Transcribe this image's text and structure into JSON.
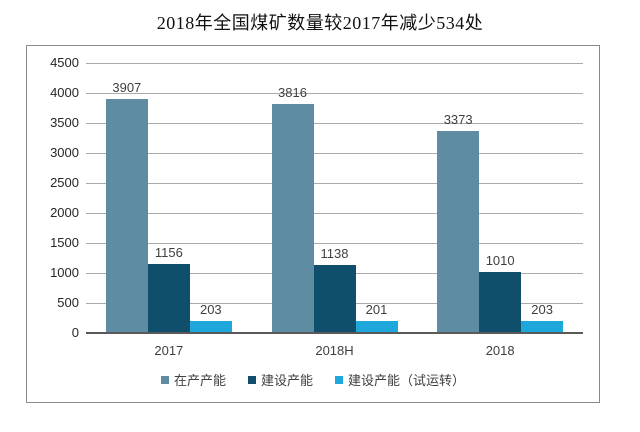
{
  "title": "2018年全国煤矿数量较2017年减少534处",
  "colors": {
    "background": "#ffffff",
    "border": "#8a8a8a",
    "gridline": "#ababab",
    "axis_line": "#595959",
    "text": "#3f3f3f",
    "series1": "#5d8ca3",
    "series2": "#0f4f6b",
    "series3": "#1ea7da"
  },
  "chart_data": {
    "type": "bar",
    "title": "2018年全国煤矿数量较2017年减少534处",
    "categories": [
      "2017",
      "2018H",
      "2018"
    ],
    "series": [
      {
        "name": "在产产能",
        "color": "#5d8ca3",
        "values": [
          3907,
          3816,
          3373
        ]
      },
      {
        "name": "建设产能",
        "color": "#0f4f6b",
        "values": [
          1156,
          1138,
          1010
        ]
      },
      {
        "name": "建设产能（试运转）",
        "color": "#1ea7da",
        "values": [
          203,
          201,
          203
        ]
      }
    ],
    "ylim": [
      0,
      4500
    ],
    "yticks": [
      0,
      500,
      1000,
      1500,
      2000,
      2500,
      3000,
      3500,
      4000,
      4500
    ],
    "grid": true,
    "bar_value_labels": true,
    "legend_position": "bottom"
  }
}
